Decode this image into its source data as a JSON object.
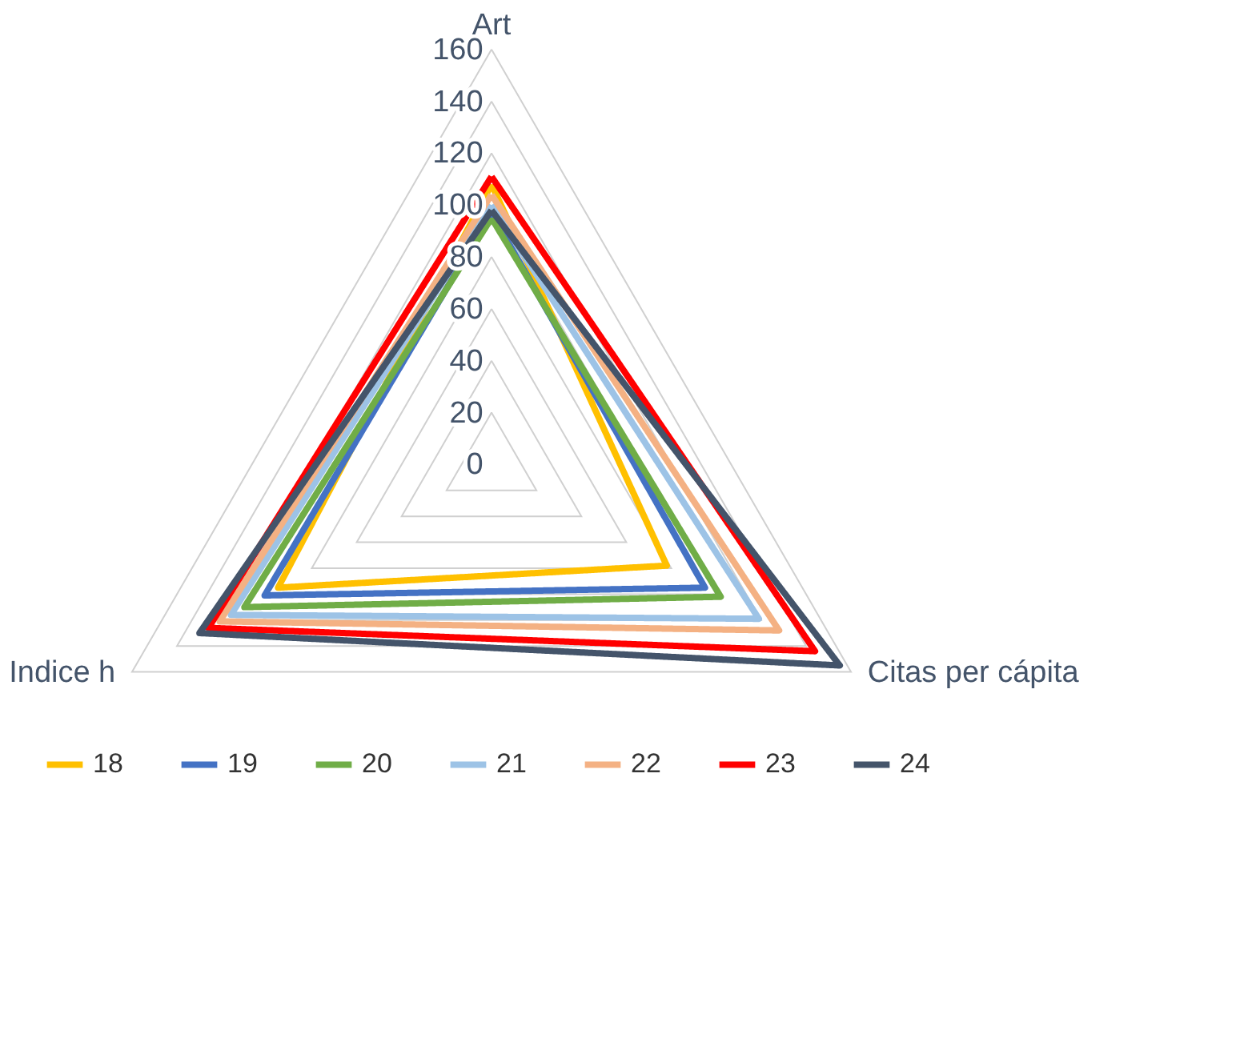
{
  "chart_data": {
    "type": "radar",
    "categories": [
      "Art",
      "Citas per cápita",
      "Indice h"
    ],
    "series": [
      {
        "name": "18",
        "color": "#ffc000",
        "values": [
          108,
          78,
          95
        ]
      },
      {
        "name": "19",
        "color": "#4472c4",
        "values": [
          97,
          95,
          101
        ]
      },
      {
        "name": "20",
        "color": "#70ad47",
        "values": [
          95,
          102,
          110
        ]
      },
      {
        "name": "21",
        "color": "#9dc3e6",
        "values": [
          100,
          119,
          116
        ]
      },
      {
        "name": "22",
        "color": "#f4b183",
        "values": [
          104,
          128,
          121
        ]
      },
      {
        "name": "23",
        "color": "#ff0000",
        "values": [
          111,
          144,
          126
        ]
      },
      {
        "name": "24",
        "color": "#44546a",
        "values": [
          98,
          155,
          130
        ]
      }
    ],
    "ylim": [
      0,
      160
    ],
    "yticks": [
      0,
      20,
      40,
      60,
      80,
      100,
      120,
      140,
      160
    ],
    "grid": true,
    "legend": "bottom",
    "line_style": "solid"
  }
}
